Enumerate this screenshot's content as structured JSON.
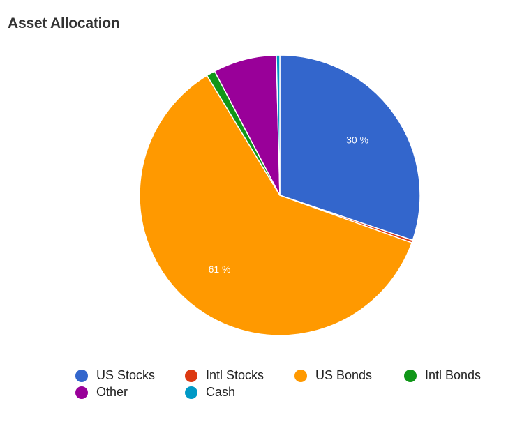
{
  "title": "Asset Allocation",
  "chart_data": {
    "type": "pie",
    "title": "Asset Allocation",
    "categories": [
      "US Stocks",
      "Intl Stocks",
      "US Bonds",
      "Intl Bonds",
      "Other",
      "Cash"
    ],
    "values": [
      30.2,
      0.3,
      60.8,
      1.0,
      7.3,
      0.4
    ],
    "colors": [
      "#3366cc",
      "#dc3912",
      "#ff9900",
      "#109618",
      "#990099",
      "#0099c6"
    ],
    "data_labels": [
      "30 %",
      "",
      "61 %",
      "",
      "",
      ""
    ],
    "start_angle_deg": 0,
    "direction": "clockwise",
    "legend_position": "bottom"
  }
}
